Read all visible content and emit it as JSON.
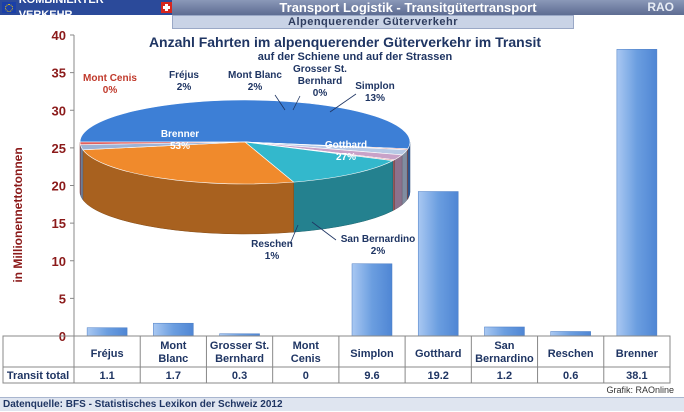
{
  "banner": {
    "brand": "KOMBINIERTER VERKEHR",
    "title": "Transport Logistik - Transitgütertransport",
    "right": "RAO",
    "subtitle": "Alpenquerender Güterverkehr"
  },
  "footer": {
    "source": "Datenquelle: BFS - Statistisches Lexikon der Schweiz 2012"
  },
  "credit": "Grafik: RAOnline",
  "chart_data": [
    {
      "type": "bar",
      "ylabel": "in Millionennettotonnen",
      "ylim": [
        0,
        40
      ],
      "yticks": [
        0,
        5,
        10,
        15,
        20,
        25,
        30,
        35,
        40
      ],
      "categories": [
        "Fréjus",
        "Mont Blanc",
        "Grosser St. Bernhard",
        "Mont Cenis",
        "Simplon",
        "Gotthard",
        "San Bernardino",
        "Reschen",
        "Brenner"
      ],
      "category_lines": [
        [
          "Fréjus"
        ],
        [
          "Mont",
          "Blanc"
        ],
        [
          "Grosser St.",
          "Bernhard"
        ],
        [
          "Mont",
          "Cenis"
        ],
        [
          "Simplon"
        ],
        [
          "Gotthard"
        ],
        [
          "San",
          "Bernardino"
        ],
        [
          "Reschen"
        ],
        [
          "Brenner"
        ]
      ],
      "series": [
        {
          "name": "Transit total",
          "values": [
            1.1,
            1.7,
            0.3,
            0,
            9.6,
            19.2,
            1.2,
            0.6,
            38.1
          ]
        }
      ],
      "value_labels": [
        "1.1",
        "1.7",
        "0.3",
        "0",
        "9.6",
        "19.2",
        "1.2",
        "0.6",
        "38.1"
      ],
      "grid": false,
      "color": "#6b9ee0"
    },
    {
      "type": "pie",
      "title": "Anzahl Fahrten im alpenquerender Güterverkehr im Transit",
      "subtitle": "auf der Schiene und auf der Strassen",
      "slices": [
        {
          "label": [
            "Brenner"
          ],
          "value": 53,
          "pct_label": "53%",
          "color": "#3d7fd6"
        },
        {
          "label": [
            "Mont Cenis"
          ],
          "value": 0.4,
          "pct_label": "0%",
          "color": "#c0504d"
        },
        {
          "label": [
            "Fréjus"
          ],
          "value": 2,
          "pct_label": "2%",
          "color": "#b7c9e6"
        },
        {
          "label": [
            "Mont Blanc"
          ],
          "value": 2,
          "pct_label": "2%",
          "color": "#c8a2c8"
        },
        {
          "label": [
            "Grosser St.",
            "Bernhard"
          ],
          "value": 0.4,
          "pct_label": "0%",
          "color": "#d27d7d"
        },
        {
          "label": [
            "Simplon"
          ],
          "value": 13,
          "pct_label": "13%",
          "color": "#33b8cc"
        },
        {
          "label": [
            "Gotthard"
          ],
          "value": 27,
          "pct_label": "27%",
          "color": "#f08a2c"
        },
        {
          "label": [
            "San Bernardino"
          ],
          "value": 2,
          "pct_label": "2%",
          "color": "#9db3d6"
        },
        {
          "label": [
            "Reschen"
          ],
          "value": 1,
          "pct_label": "1%",
          "color": "#e06060"
        }
      ]
    }
  ]
}
